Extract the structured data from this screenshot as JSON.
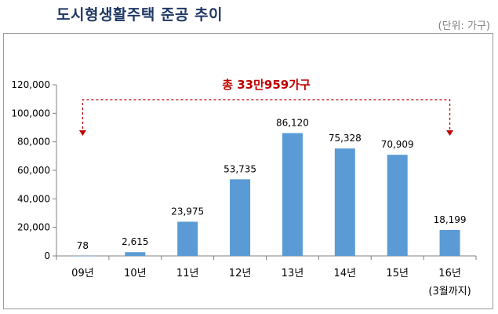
{
  "header": {
    "title": "도시형생활주택 준공 추이",
    "unit": "(단위: 가구)"
  },
  "annotation": {
    "total_text": "총 33만959가구",
    "color": "#c00000"
  },
  "colors": {
    "bar": "#5b9bd5",
    "axis": "#808080"
  },
  "chart_data": {
    "type": "bar",
    "categories": [
      "09년",
      "10년",
      "11년",
      "12년",
      "13년",
      "14년",
      "15년",
      "16년"
    ],
    "category_sublabels": [
      "",
      "",
      "",
      "",
      "",
      "",
      "",
      "(3월까지)"
    ],
    "values": [
      78,
      2615,
      23975,
      53735,
      86120,
      75328,
      70909,
      18199
    ],
    "data_labels": [
      "78",
      "2,615",
      "23,975",
      "53,735",
      "86,120",
      "75,328",
      "70,909",
      "18,199"
    ],
    "ylim": [
      0,
      120000
    ],
    "yticks": [
      0,
      20000,
      40000,
      60000,
      80000,
      100000,
      120000
    ],
    "ytick_labels": [
      "0",
      "20,000",
      "40,000",
      "60,000",
      "80,000",
      "100,000",
      "120,000"
    ],
    "grid": false,
    "title": "도시형생활주택 준공 추이",
    "xlabel": "",
    "ylabel": ""
  }
}
